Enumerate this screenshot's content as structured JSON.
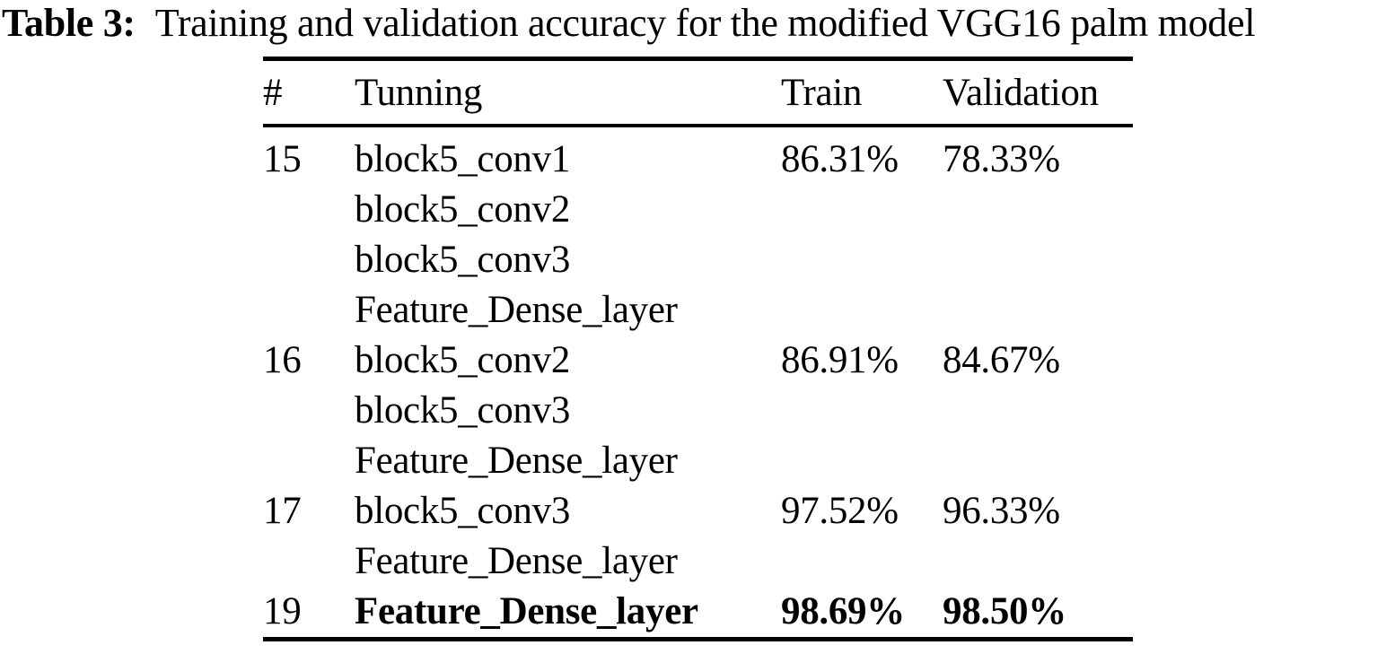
{
  "caption": {
    "label": "Table 3:",
    "text": "Training and validation accuracy for the modified VGG16 palm model"
  },
  "table": {
    "columns": [
      "#",
      "Tunning",
      "Train",
      "Validation"
    ],
    "rows": [
      {
        "num": "15",
        "tunning": [
          "block5_conv1",
          "block5_conv2",
          "block5_conv3",
          "Feature_Dense_layer"
        ],
        "train": "86.31%",
        "validation": "78.33%",
        "bold": false
      },
      {
        "num": "16",
        "tunning": [
          "block5_conv2",
          "block5_conv3",
          "Feature_Dense_layer"
        ],
        "train": "86.91%",
        "validation": "84.67%",
        "bold": false
      },
      {
        "num": "17",
        "tunning": [
          "block5_conv3",
          "Feature_Dense_layer"
        ],
        "train": "97.52%",
        "validation": "96.33%",
        "bold": false
      },
      {
        "num": "19",
        "tunning": [
          "Feature_Dense_layer"
        ],
        "train": "98.69%",
        "validation": "98.50%",
        "bold": true
      }
    ]
  },
  "colors": {
    "background": "#ffffff",
    "text": "#000000",
    "rule": "#000000"
  }
}
